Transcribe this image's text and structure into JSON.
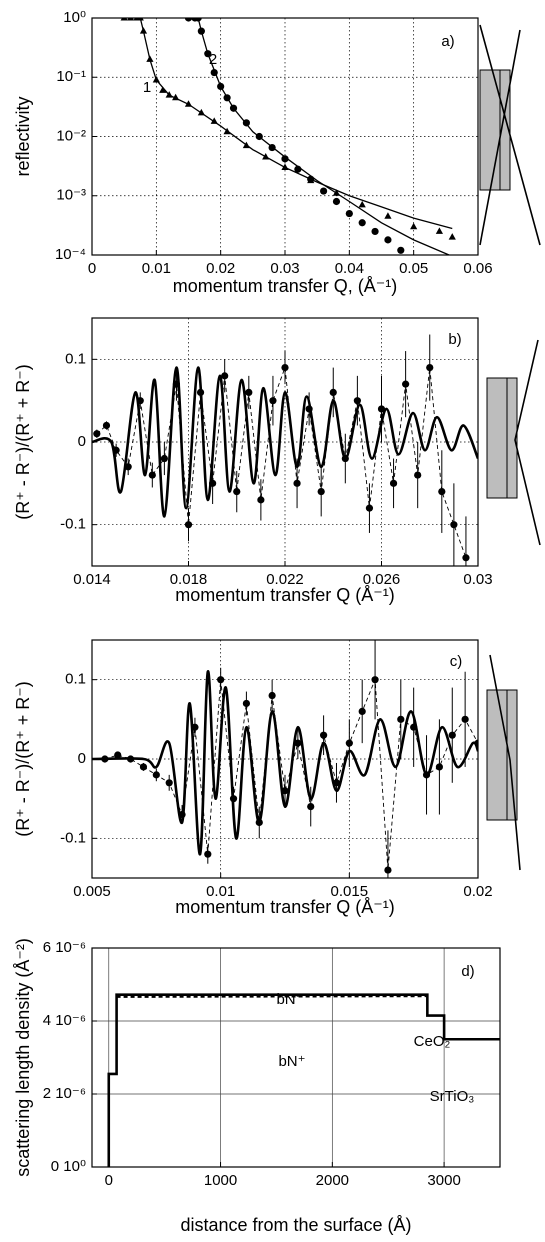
{
  "chart_data": [
    {
      "type": "line",
      "xlabel": "momentum transfer Q, (Å⁻¹)",
      "ylabel": "reflectivity",
      "log_y": true,
      "grid": true,
      "grid_style": "dotted",
      "xlim": [
        0,
        0.06
      ],
      "xticks": [
        0,
        0.01,
        0.02,
        0.03,
        0.04,
        0.05,
        0.06
      ],
      "ylim": [
        0.0001,
        1
      ],
      "yticks": [
        {
          "value": 0.0001,
          "label": "10⁻⁴"
        },
        {
          "value": 0.001,
          "label": "10⁻³"
        },
        {
          "value": 0.01,
          "label": "10⁻²"
        },
        {
          "value": 0.1,
          "label": "10⁻¹"
        },
        {
          "value": 1,
          "label": "10⁰"
        }
      ],
      "annotations": [
        "a)",
        "1",
        "2"
      ],
      "series": [
        {
          "color": "#000000",
          "style": "none",
          "marker": "triangle",
          "x": [
            0.005,
            0.006,
            0.007,
            0.0075,
            0.008,
            0.009,
            0.01,
            0.011,
            0.012,
            0.013,
            0.015,
            0.017,
            0.019,
            0.021,
            0.024,
            0.027,
            0.03,
            0.034,
            0.038,
            0.042,
            0.046,
            0.05,
            0.054,
            0.056
          ],
          "values": [
            1,
            1,
            1,
            1,
            0.6,
            0.2,
            0.09,
            0.06,
            0.05,
            0.045,
            0.035,
            0.025,
            0.018,
            0.012,
            0.007,
            0.0045,
            0.003,
            0.0018,
            0.0011,
            0.0007,
            0.00045,
            0.0003,
            0.00025,
            0.0002
          ]
        },
        {
          "color": "#000000",
          "style": "none",
          "marker": "circle",
          "x": [
            0.015,
            0.016,
            0.0165,
            0.017,
            0.018,
            0.019,
            0.02,
            0.021,
            0.022,
            0.024,
            0.026,
            0.028,
            0.03,
            0.032,
            0.034,
            0.036,
            0.038,
            0.04,
            0.042,
            0.044,
            0.046,
            0.048
          ],
          "values": [
            1,
            1,
            1,
            0.6,
            0.25,
            0.12,
            0.07,
            0.045,
            0.03,
            0.017,
            0.01,
            0.0065,
            0.0042,
            0.0028,
            0.0019,
            0.0012,
            0.0008,
            0.0005,
            0.00035,
            0.00025,
            0.00018,
            0.00012
          ]
        },
        {
          "color": "#000000",
          "style": "solid",
          "marker": null,
          "x": [
            0.0165,
            0.017,
            0.018,
            0.02,
            0.022,
            0.025,
            0.03,
            0.035,
            0.04,
            0.045,
            0.05,
            0.0555
          ],
          "values": [
            1,
            0.6,
            0.25,
            0.07,
            0.03,
            0.012,
            0.0045,
            0.0018,
            0.0008,
            0.00035,
            0.00018,
            0.0001
          ]
        },
        {
          "color": "#000000",
          "style": "solid",
          "marker": null,
          "x": [
            0.0075,
            0.008,
            0.009,
            0.01,
            0.012,
            0.015,
            0.02,
            0.025,
            0.03,
            0.035,
            0.04,
            0.045,
            0.05,
            0.056
          ],
          "values": [
            1,
            0.6,
            0.2,
            0.09,
            0.05,
            0.035,
            0.015,
            0.006,
            0.003,
            0.0017,
            0.001,
            0.00065,
            0.00042,
            0.00028
          ]
        }
      ]
    },
    {
      "type": "line",
      "xlabel": "momentum transfer Q (Å⁻¹)",
      "ylabel": "(R⁺ - R⁻)/(R⁺ + R⁻)",
      "log_y": false,
      "grid": true,
      "grid_style": "dotted",
      "xlim": [
        0.014,
        0.03
      ],
      "xticks": [
        0.014,
        0.018,
        0.022,
        0.026,
        0.03
      ],
      "ylim": [
        -0.15,
        0.15
      ],
      "yticks": [
        -0.1,
        0,
        0.1
      ],
      "annotations": [
        "b)"
      ],
      "series": [
        {
          "color": "#000000",
          "style": "solid",
          "width": 2.6,
          "smooth": true,
          "marker": null,
          "x": [
            0.014,
            0.0148,
            0.0152,
            0.0158,
            0.0162,
            0.0166,
            0.017,
            0.0175,
            0.0179,
            0.0184,
            0.0188,
            0.0193,
            0.0197,
            0.0202,
            0.0207,
            0.0211,
            0.0216,
            0.022,
            0.0225,
            0.0229,
            0.0235,
            0.024,
            0.0245,
            0.0251,
            0.0256,
            0.0262,
            0.0267,
            0.0273,
            0.0278,
            0.0283,
            0.0289,
            0.0294,
            0.03
          ],
          "values": [
            0,
            0,
            -0.06,
            0.06,
            -0.04,
            0.075,
            -0.09,
            0.09,
            -0.08,
            0.09,
            -0.07,
            0.08,
            -0.06,
            0.075,
            -0.05,
            0.065,
            -0.04,
            0.06,
            -0.03,
            0.055,
            -0.03,
            0.05,
            -0.02,
            0.045,
            -0.02,
            0.04,
            -0.015,
            0.035,
            -0.01,
            0.03,
            -0.01,
            0.02,
            -0.02
          ]
        },
        {
          "color": "#000000",
          "style": "dashed",
          "width": 0.9,
          "smooth": false,
          "marker": "circle",
          "x": [
            0.0142,
            0.0146,
            0.015,
            0.0155,
            0.016,
            0.0165,
            0.017,
            0.0175,
            0.018,
            0.0185,
            0.019,
            0.0195,
            0.02,
            0.0205,
            0.021,
            0.0215,
            0.022,
            0.0225,
            0.023,
            0.0235,
            0.024,
            0.0245,
            0.025,
            0.0255,
            0.026,
            0.0265,
            0.027,
            0.0275,
            0.028,
            0.0285,
            0.029,
            0.0295
          ],
          "values": [
            0.01,
            0.02,
            -0.01,
            -0.03,
            0.05,
            -0.04,
            -0.02,
            0.07,
            -0.1,
            0.06,
            -0.05,
            0.08,
            -0.06,
            0.06,
            -0.07,
            0.05,
            0.09,
            -0.05,
            0.04,
            -0.06,
            0.06,
            -0.02,
            0.05,
            -0.08,
            0.04,
            -0.05,
            0.07,
            -0.04,
            0.09,
            -0.06,
            -0.1,
            -0.14
          ],
          "errors": [
            0.005,
            0.005,
            0.008,
            0.01,
            0.01,
            0.015,
            0.02,
            0.02,
            0.02,
            0.02,
            0.025,
            0.02,
            0.025,
            0.02,
            0.025,
            0.03,
            0.02,
            0.03,
            0.02,
            0.03,
            0.03,
            0.03,
            0.03,
            0.03,
            0.04,
            0.03,
            0.04,
            0.04,
            0.04,
            0.05,
            0.05,
            0.05
          ]
        }
      ]
    },
    {
      "type": "line",
      "xlabel": "momentum transfer Q (Å⁻¹)",
      "ylabel": "(R⁺ - R⁻)/(R⁺ + R⁻)",
      "log_y": false,
      "grid": true,
      "grid_style": "dotted",
      "xlim": [
        0.005,
        0.02
      ],
      "xticks": [
        0.005,
        0.01,
        0.015,
        0.02
      ],
      "ylim": [
        -0.15,
        0.15
      ],
      "yticks": [
        -0.1,
        0,
        0.1
      ],
      "annotations": [
        "c)"
      ],
      "series": [
        {
          "color": "#000000",
          "style": "solid",
          "width": 2.6,
          "smooth": true,
          "marker": null,
          "x": [
            0.005,
            0.007,
            0.0075,
            0.008,
            0.0085,
            0.0088,
            0.0092,
            0.0095,
            0.0098,
            0.0102,
            0.0106,
            0.011,
            0.0115,
            0.012,
            0.0125,
            0.013,
            0.0135,
            0.014,
            0.0145,
            0.015,
            0.0156,
            0.0162,
            0.0168,
            0.0174,
            0.018,
            0.0186,
            0.0192,
            0.0198,
            0.02
          ],
          "values": [
            0,
            0,
            -0.01,
            0.02,
            -0.08,
            0.07,
            -0.12,
            0.11,
            -0.05,
            0.09,
            -0.1,
            0.04,
            -0.08,
            0.06,
            -0.06,
            0.04,
            -0.05,
            0.02,
            -0.04,
            0.01,
            -0.02,
            0.05,
            -0.01,
            0.06,
            -0.02,
            0.04,
            -0.01,
            0.02,
            0.01
          ]
        },
        {
          "color": "#000000",
          "style": "dashed",
          "width": 0.9,
          "smooth": false,
          "marker": "circle",
          "x": [
            0.0055,
            0.006,
            0.0065,
            0.007,
            0.0075,
            0.008,
            0.0085,
            0.009,
            0.0095,
            0.01,
            0.0105,
            0.011,
            0.0115,
            0.012,
            0.0125,
            0.013,
            0.0135,
            0.014,
            0.0145,
            0.015,
            0.0155,
            0.016,
            0.0165,
            0.017,
            0.0175,
            0.018,
            0.0185,
            0.019,
            0.0195,
            0.02
          ],
          "values": [
            0,
            0.005,
            0,
            -0.01,
            -0.02,
            -0.03,
            -0.07,
            0.04,
            -0.12,
            0.1,
            -0.05,
            0.07,
            -0.08,
            0.08,
            -0.04,
            0.02,
            -0.06,
            0.03,
            -0.03,
            0.02,
            0.06,
            0.1,
            -0.14,
            0.05,
            0.04,
            -0.02,
            -0.01,
            0.03,
            0.05,
            0.02
          ],
          "errors": [
            0.003,
            0.003,
            0.004,
            0.005,
            0.008,
            0.01,
            0.012,
            0.012,
            0.012,
            0.015,
            0.015,
            0.015,
            0.02,
            0.02,
            0.02,
            0.02,
            0.025,
            0.025,
            0.025,
            0.03,
            0.04,
            0.05,
            0.05,
            0.05,
            0.05,
            0.05,
            0.06,
            0.06,
            0.06,
            0.06
          ]
        }
      ]
    },
    {
      "type": "line",
      "xlabel": "distance from the surface (Å)",
      "ylabel": "scattering length density (Å⁻²)",
      "log_y": false,
      "grid": true,
      "grid_style": "solid",
      "xlim": [
        -150,
        3500
      ],
      "xticks": [
        0,
        1000,
        2000,
        3000
      ],
      "ylim": [
        0,
        6e-06
      ],
      "yticks": [
        {
          "value": 0,
          "label": "0 10⁰"
        },
        {
          "value": 2e-06,
          "label": "2 10⁻⁶"
        },
        {
          "value": 4e-06,
          "label": "4 10⁻⁶"
        },
        {
          "value": 6e-06,
          "label": "6 10⁻⁶"
        }
      ],
      "annotations": [
        "d)",
        "bN⁻",
        "bN⁺",
        "CeO₂",
        "SrTiO₃"
      ],
      "series": [
        {
          "color": "#000000",
          "style": "solid",
          "width": 2.6,
          "marker": null,
          "x": [
            0,
            0,
            70,
            70,
            2850,
            2850,
            3000,
            3000,
            3500
          ],
          "values": [
            0,
            2.55e-06,
            2.55e-06,
            4.72e-06,
            4.72e-06,
            4.15e-06,
            4.15e-06,
            3.5e-06,
            3.5e-06
          ]
        },
        {
          "color": "#000000",
          "style": "dashed",
          "width": 2,
          "marker": null,
          "x": [
            70,
            2850
          ],
          "values": [
            4.66e-06,
            4.68e-06
          ]
        }
      ]
    }
  ]
}
